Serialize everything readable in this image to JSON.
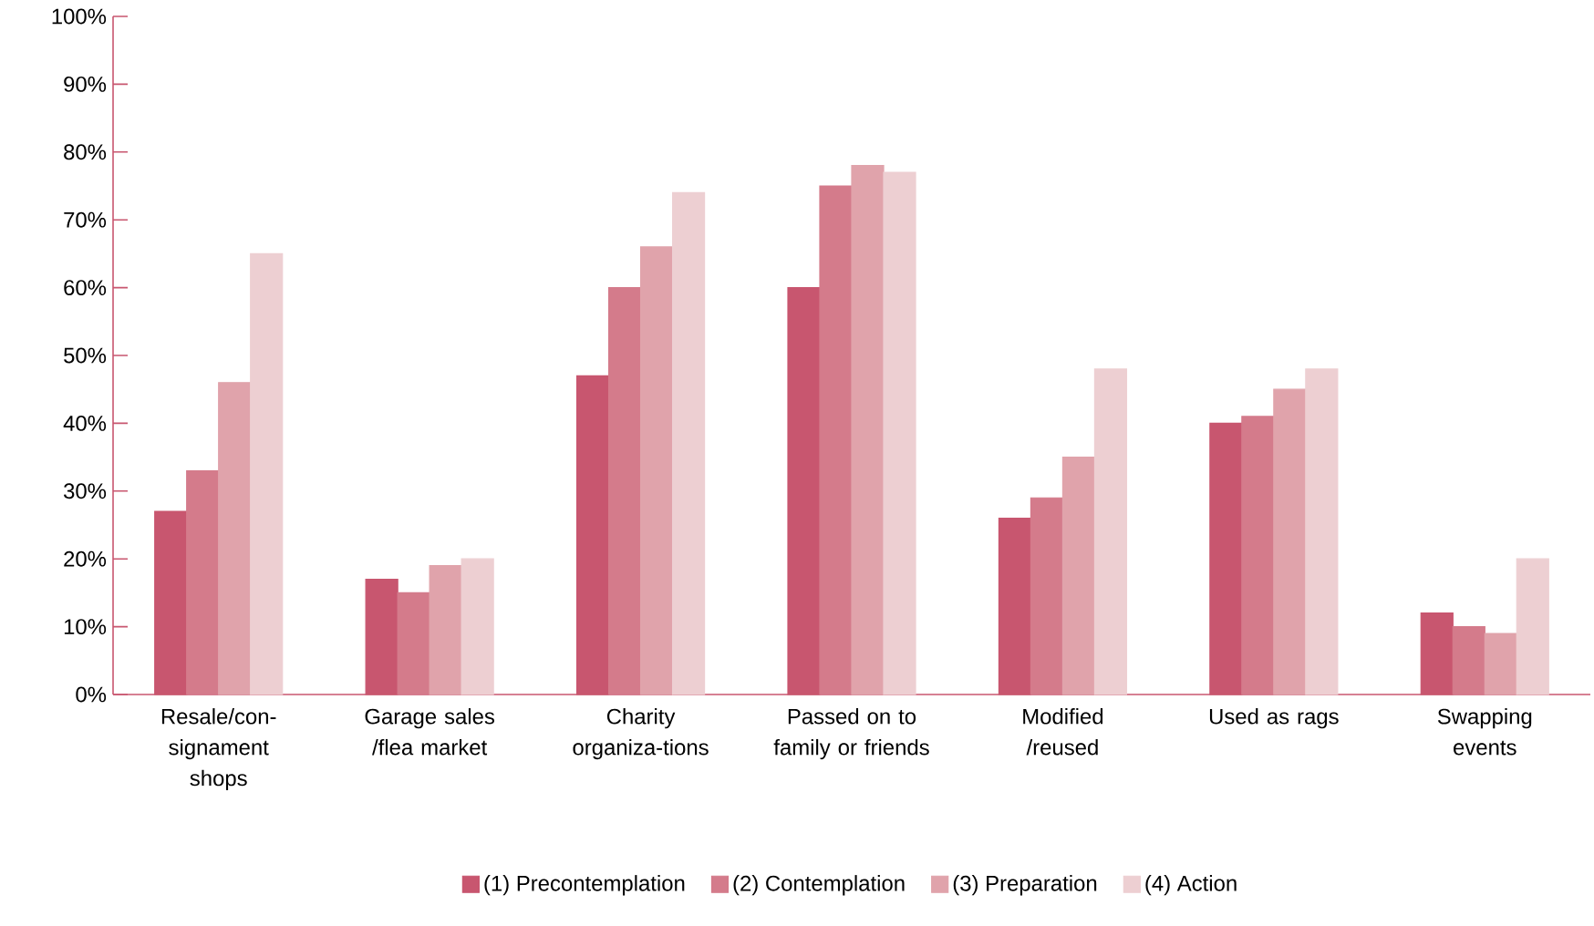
{
  "chart_data": {
    "type": "bar",
    "categories": [
      "Resale/con-signament shops",
      "Garage sales /flea market",
      "Charity organiza-tions",
      "Passed on to family or friends",
      "Modified /reused",
      "Used as rags",
      "Swapping events"
    ],
    "series": [
      {
        "name": "(1) Precontemplation",
        "color": "#c8566f",
        "values": [
          27,
          17,
          47,
          60,
          26,
          40,
          12
        ]
      },
      {
        "name": "(2) Contemplation",
        "color": "#d47b8b",
        "values": [
          33,
          15,
          60,
          75,
          29,
          41,
          10
        ]
      },
      {
        "name": "(3) Preparation",
        "color": "#e0a3ab",
        "values": [
          46,
          19,
          66,
          78,
          35,
          45,
          9
        ]
      },
      {
        "name": "(4) Action",
        "color": "#edcfd2",
        "values": [
          65,
          20,
          74,
          77,
          48,
          48,
          20
        ]
      }
    ],
    "ylim": [
      0,
      100
    ],
    "yticks": [
      {
        "value": 0,
        "label": "0%"
      },
      {
        "value": 10,
        "label": "10%"
      },
      {
        "value": 20,
        "label": "20%"
      },
      {
        "value": 30,
        "label": "30%"
      },
      {
        "value": 40,
        "label": "40%"
      },
      {
        "value": 50,
        "label": "50%"
      },
      {
        "value": 60,
        "label": "60%"
      },
      {
        "value": 70,
        "label": "70%"
      },
      {
        "value": 80,
        "label": "80%"
      },
      {
        "value": 90,
        "label": "90%"
      },
      {
        "value": 100,
        "label": "100%"
      }
    ],
    "grid": false,
    "legend": "bottom"
  }
}
